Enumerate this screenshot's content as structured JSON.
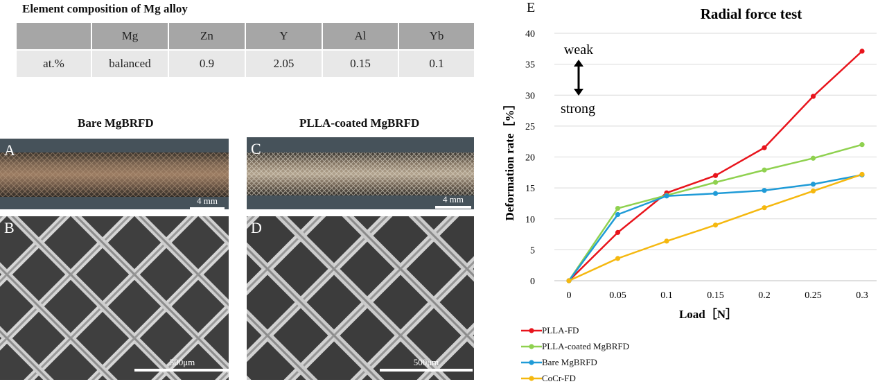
{
  "table": {
    "title": "Element composition of  Mg alloy",
    "headers": [
      "",
      "Mg",
      "Zn",
      "Y",
      "Al",
      "Yb"
    ],
    "row": [
      "at.%",
      "balanced",
      "0.9",
      "2.05",
      "0.15",
      "0.1"
    ]
  },
  "panels": {
    "left_title": "Bare MgBRFD",
    "right_title": "PLLA-coated MgBRFD",
    "A": {
      "letter": "A",
      "scale": "4 mm"
    },
    "B": {
      "letter": "B",
      "scale": "500μm"
    },
    "C": {
      "letter": "C",
      "scale": "4 mm"
    },
    "D": {
      "letter": "D",
      "scale": "500μm"
    }
  },
  "chart_data": {
    "type": "line",
    "panel_letter": "E",
    "title": "Radial force test",
    "xlabel": "Load［N］",
    "ylabel": "Deformation rate［%］",
    "x": [
      0,
      0.05,
      0.1,
      0.15,
      0.2,
      0.25,
      0.3
    ],
    "x_tick_labels": [
      "0",
      "0.05",
      "0.1",
      "0.15",
      "0.2",
      "0.25",
      "0.3"
    ],
    "ylim": [
      0,
      40
    ],
    "y_ticks": [
      0,
      5,
      10,
      15,
      20,
      25,
      30,
      35,
      40
    ],
    "grid": "horizontal",
    "legend_position": "bottom-left",
    "annotations": {
      "weak": "weak",
      "strong": "strong"
    },
    "series": [
      {
        "name": "PLLA-FD",
        "color": "#e8141c",
        "values": [
          0,
          7.8,
          14.2,
          17.0,
          21.5,
          29.8,
          37.1
        ]
      },
      {
        "name": "PLLA-coated MgBRFD",
        "color": "#8fd14f",
        "values": [
          0,
          11.7,
          13.8,
          15.9,
          17.9,
          19.8,
          22.0
        ]
      },
      {
        "name": "Bare MgBRFD",
        "color": "#1f9bd7",
        "values": [
          0,
          10.7,
          13.7,
          14.1,
          14.6,
          15.6,
          17.1
        ]
      },
      {
        "name": "CoCr-FD",
        "color": "#f5b80f",
        "values": [
          0,
          3.6,
          6.4,
          9.0,
          11.8,
          14.5,
          17.2
        ]
      }
    ]
  }
}
